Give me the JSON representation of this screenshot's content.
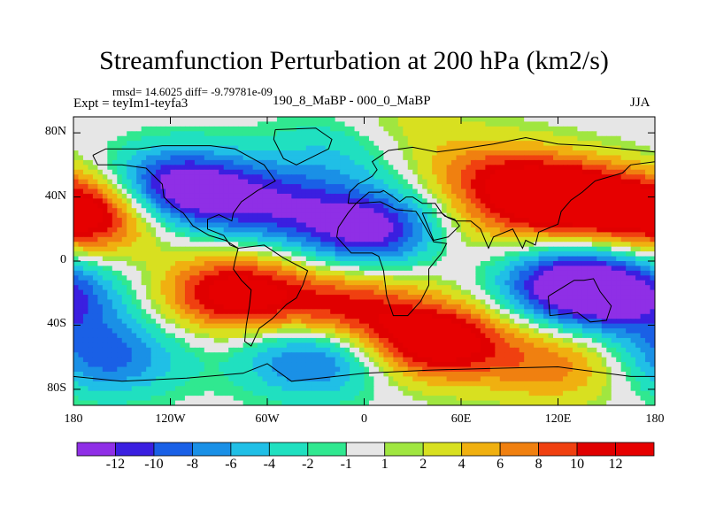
{
  "chart_data": {
    "type": "heatmap",
    "title": "Streamfunction Perturbation at 200 hPa (km2/s)",
    "subtitle_left": "rmsd= 14.6025 diff= -9.79781e-09",
    "experiment_label": "Expt = teyIm1-teyfa3",
    "experiment_name": "190_8_MaBP - 000_0_MaBP",
    "season": "JJA",
    "units": "km2/s",
    "x_range": [
      -180,
      180
    ],
    "y_range": [
      -90,
      90
    ],
    "x_ticks": [
      {
        "value": -180,
        "label": "180"
      },
      {
        "value": -120,
        "label": "120W"
      },
      {
        "value": -60,
        "label": "60W"
      },
      {
        "value": 0,
        "label": "0"
      },
      {
        "value": 60,
        "label": "60E"
      },
      {
        "value": 120,
        "label": "120E"
      },
      {
        "value": 180,
        "label": "180"
      }
    ],
    "y_ticks": [
      {
        "value": 80,
        "label": "80N"
      },
      {
        "value": 40,
        "label": "40N"
      },
      {
        "value": 0,
        "label": "0"
      },
      {
        "value": -40,
        "label": "40S"
      },
      {
        "value": -80,
        "label": "80S"
      }
    ],
    "contour_levels": [
      -12,
      -10,
      -8,
      -6,
      -4,
      -2,
      -1,
      1,
      2,
      4,
      6,
      8,
      10,
      12
    ],
    "colorbar_labels": [
      "-12",
      "-10",
      "-8",
      "-6",
      "-4",
      "-2",
      "-1",
      "1",
      "2",
      "4",
      "6",
      "8",
      "10",
      "12"
    ],
    "colors": [
      "#8f2fe6",
      "#3a1fe0",
      "#1a60e6",
      "#1a90e6",
      "#20bfe6",
      "#20e0c0",
      "#30e890",
      "#e6e6e6",
      "#a0e640",
      "#d8e020",
      "#f0b010",
      "#f08010",
      "#f04010",
      "#e00000",
      "#e60000"
    ],
    "anomaly_centers": [
      {
        "lon": -170,
        "lat": 30,
        "amp": 15
      },
      {
        "lon": 125,
        "lat": 38,
        "amp": 16
      },
      {
        "lon": 45,
        "lat": -50,
        "amp": 15
      },
      {
        "lon": -80,
        "lat": -20,
        "amp": 14
      },
      {
        "lon": -10,
        "lat": -30,
        "amp": 10
      },
      {
        "lon": 80,
        "lat": 52,
        "amp": 8
      },
      {
        "lon": 120,
        "lat": -65,
        "amp": 7
      },
      {
        "lon": -115,
        "lat": 45,
        "amp": -16
      },
      {
        "lon": -55,
        "lat": 35,
        "amp": -9
      },
      {
        "lon": 5,
        "lat": 20,
        "amp": -14
      },
      {
        "lon": 130,
        "lat": -15,
        "amp": -16
      },
      {
        "lon": 170,
        "lat": -25,
        "amp": -8
      },
      {
        "lon": -30,
        "lat": -60,
        "amp": -10
      },
      {
        "lon": -160,
        "lat": -60,
        "amp": -9
      },
      {
        "lon": -10,
        "lat": 70,
        "amp": -5
      },
      {
        "lon": 20,
        "lat": 80,
        "amp": 4
      },
      {
        "lon": 60,
        "lat": 18,
        "amp": 3
      }
    ]
  }
}
